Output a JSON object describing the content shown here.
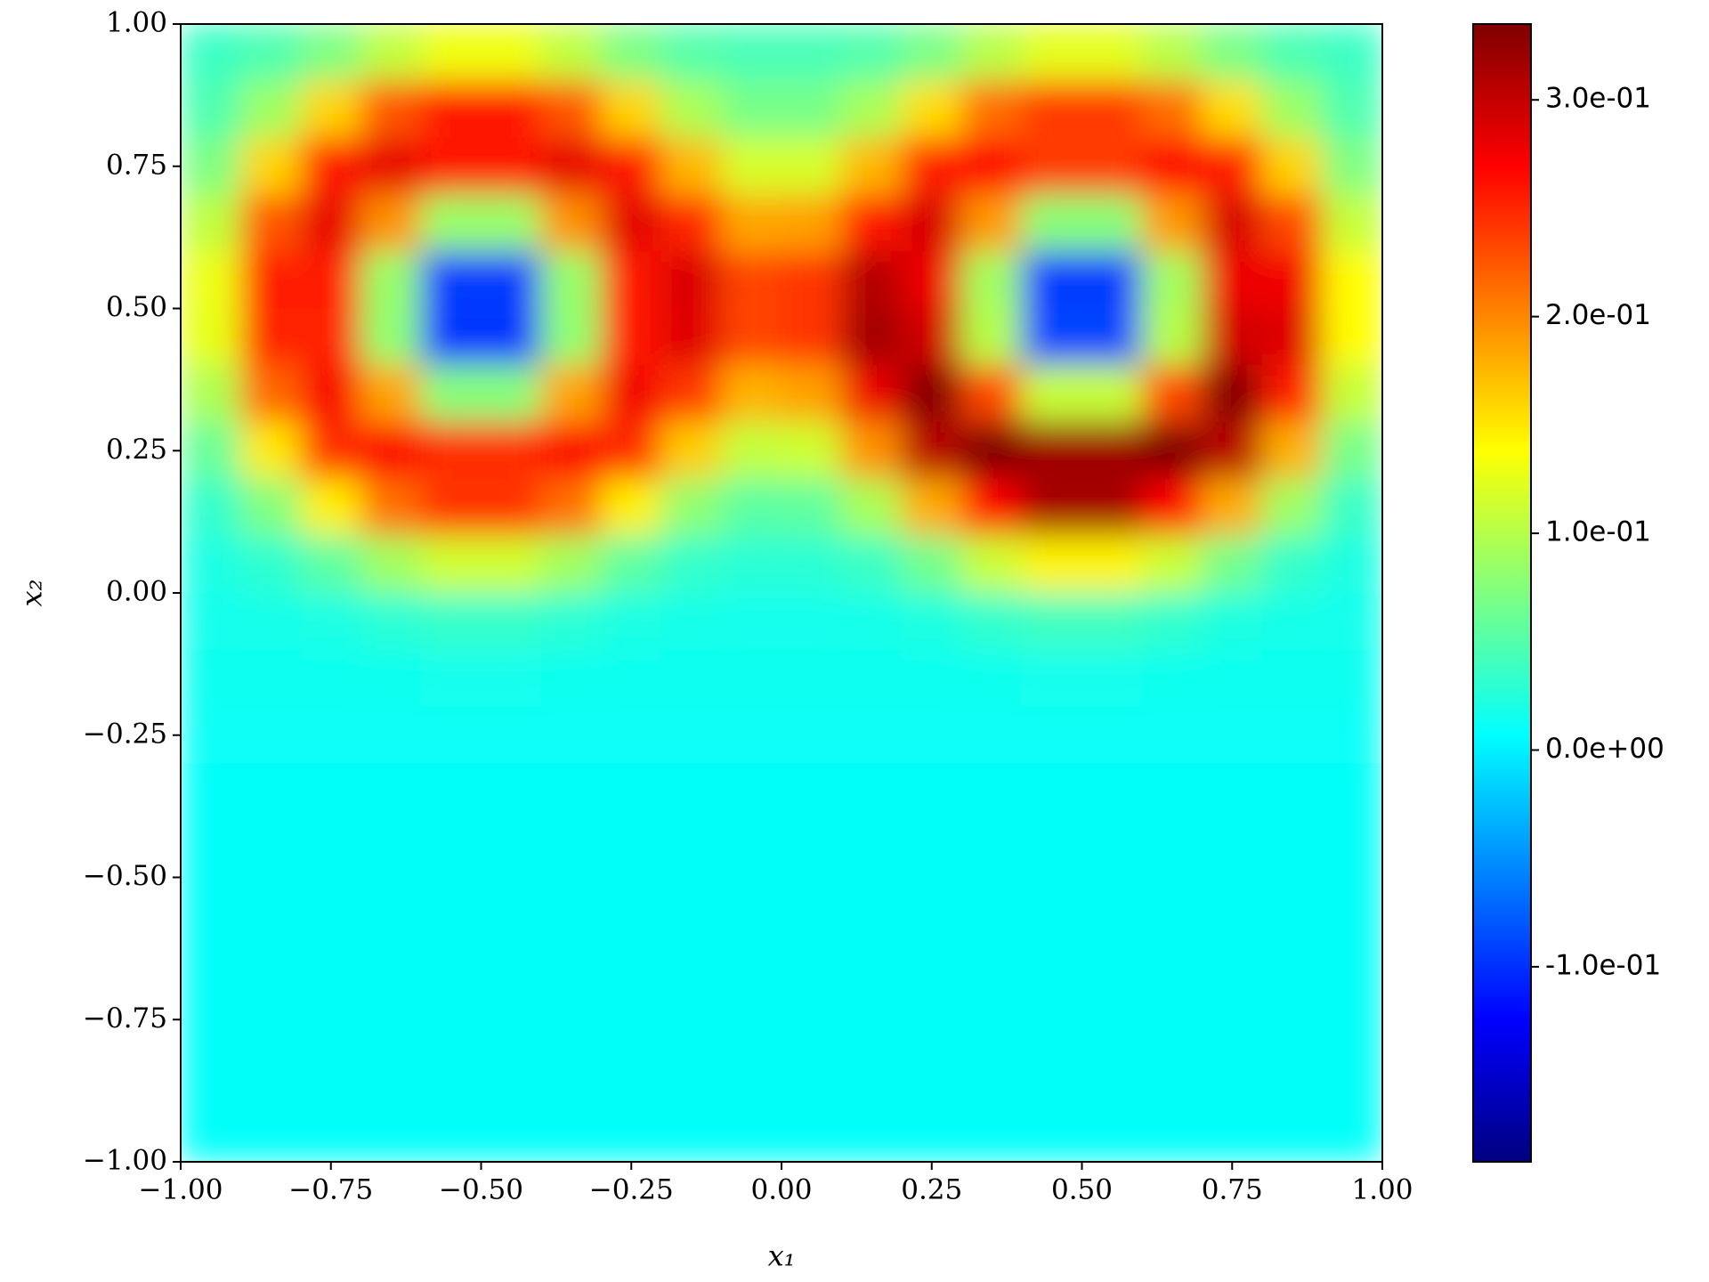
{
  "chart_data": {
    "type": "heatmap",
    "xlabel": "x₁",
    "ylabel": "x₂",
    "colormap": "jet",
    "clim": [
      -0.19,
      0.335
    ],
    "cticks": [
      {
        "value": -0.1,
        "label": "-1.0e-01"
      },
      {
        "value": 0,
        "label": "0.0e+00"
      },
      {
        "value": 0.1,
        "label": "1.0e-01"
      },
      {
        "value": 0.2,
        "label": "2.0e-01"
      },
      {
        "value": 0.3,
        "label": "3.0e-01"
      }
    ],
    "xlim": [
      -1,
      1
    ],
    "ylim": [
      -1,
      1
    ],
    "xticks": [
      {
        "value": -1,
        "label": "−1.00"
      },
      {
        "value": -0.75,
        "label": "−0.75"
      },
      {
        "value": -0.5,
        "label": "−0.50"
      },
      {
        "value": -0.25,
        "label": "−0.25"
      },
      {
        "value": 0,
        "label": "0.00"
      },
      {
        "value": 0.25,
        "label": "0.25"
      },
      {
        "value": 0.5,
        "label": "0.50"
      },
      {
        "value": 0.75,
        "label": "0.75"
      },
      {
        "value": 1,
        "label": "1.00"
      }
    ],
    "yticks": [
      {
        "value": -1,
        "label": "−1.00"
      },
      {
        "value": -0.75,
        "label": "−0.75"
      },
      {
        "value": -0.5,
        "label": "−0.50"
      },
      {
        "value": -0.25,
        "label": "−0.25"
      },
      {
        "value": 0,
        "label": "0.00"
      },
      {
        "value": 0.25,
        "label": "0.25"
      },
      {
        "value": 0.5,
        "label": "0.50"
      },
      {
        "value": 0.75,
        "label": "0.75"
      },
      {
        "value": 1,
        "label": "1.00"
      }
    ],
    "x": [
      -0.95,
      -0.85,
      -0.75,
      -0.65,
      -0.55,
      -0.45,
      -0.35,
      -0.25,
      -0.15,
      -0.05,
      0.05,
      0.15,
      0.25,
      0.35,
      0.45,
      0.55,
      0.65,
      0.75,
      0.85,
      0.95
    ],
    "y": [
      0.95,
      0.85,
      0.75,
      0.65,
      0.55,
      0.45,
      0.35,
      0.25,
      0.15,
      0.05,
      -0.05,
      -0.15,
      -0.25,
      -0.35,
      -0.45,
      -0.55,
      -0.65,
      -0.75,
      -0.85,
      -0.95
    ],
    "z": [
      [
        0.037,
        0.047,
        0.071,
        0.105,
        0.13,
        0.13,
        0.105,
        0.071,
        0.05,
        0.044,
        0.044,
        0.049,
        0.069,
        0.101,
        0.124,
        0.124,
        0.101,
        0.069,
        0.046,
        0.037
      ],
      [
        0.047,
        0.088,
        0.16,
        0.225,
        0.257,
        0.257,
        0.225,
        0.16,
        0.095,
        0.068,
        0.068,
        0.094,
        0.155,
        0.213,
        0.239,
        0.239,
        0.213,
        0.155,
        0.087,
        0.047
      ],
      [
        0.071,
        0.16,
        0.257,
        0.282,
        0.257,
        0.257,
        0.282,
        0.259,
        0.175,
        0.117,
        0.117,
        0.175,
        0.255,
        0.27,
        0.239,
        0.239,
        0.27,
        0.255,
        0.16,
        0.072
      ],
      [
        0.105,
        0.225,
        0.282,
        0.194,
        0.085,
        0.085,
        0.194,
        0.285,
        0.25,
        0.184,
        0.187,
        0.257,
        0.29,
        0.19,
        0.077,
        0.077,
        0.19,
        0.29,
        0.232,
        0.109
      ],
      [
        0.129,
        0.256,
        0.256,
        0.084,
        -0.094,
        -0.094,
        0.084,
        0.26,
        0.289,
        0.234,
        0.242,
        0.308,
        0.278,
        0.09,
        -0.094,
        -0.094,
        0.09,
        0.278,
        0.276,
        0.139
      ],
      [
        0.126,
        0.253,
        0.253,
        0.081,
        -0.097,
        -0.097,
        0.081,
        0.257,
        0.286,
        0.234,
        0.242,
        0.317,
        0.293,
        0.1,
        -0.089,
        -0.089,
        0.1,
        0.293,
        0.286,
        0.139
      ],
      [
        0.096,
        0.216,
        0.273,
        0.185,
        0.076,
        0.076,
        0.185,
        0.276,
        0.241,
        0.178,
        0.187,
        0.279,
        0.332,
        0.232,
        0.109,
        0.109,
        0.232,
        0.332,
        0.254,
        0.109
      ],
      [
        0.06,
        0.149,
        0.246,
        0.271,
        0.246,
        0.246,
        0.271,
        0.248,
        0.164,
        0.107,
        0.113,
        0.194,
        0.306,
        0.344,
        0.319,
        0.319,
        0.344,
        0.306,
        0.179,
        0.068
      ],
      [
        0.033,
        0.074,
        0.146,
        0.211,
        0.243,
        0.243,
        0.211,
        0.146,
        0.081,
        0.054,
        0.057,
        0.094,
        0.181,
        0.269,
        0.315,
        0.315,
        0.269,
        0.181,
        0.087,
        0.036
      ],
      [
        0.021,
        0.031,
        0.055,
        0.089,
        0.114,
        0.114,
        0.089,
        0.055,
        0.034,
        0.028,
        0.029,
        0.037,
        0.066,
        0.111,
        0.144,
        0.144,
        0.111,
        0.066,
        0.034,
        0.022
      ],
      [
        0.016,
        0.018,
        0.021,
        0.028,
        0.034,
        0.034,
        0.028,
        0.021,
        0.018,
        0.016,
        0.016,
        0.018,
        0.023,
        0.032,
        0.04,
        0.04,
        0.032,
        0.023,
        0.018,
        0.016
      ],
      [
        0.014,
        0.014,
        0.014,
        0.015,
        0.016,
        0.016,
        0.015,
        0.014,
        0.014,
        0.014,
        0.014,
        0.014,
        0.014,
        0.015,
        0.016,
        0.016,
        0.015,
        0.014,
        0.014,
        0.014
      ],
      [
        0.011,
        0.011,
        0.011,
        0.011,
        0.011,
        0.011,
        0.011,
        0.011,
        0.011,
        0.011,
        0.011,
        0.011,
        0.011,
        0.011,
        0.011,
        0.011,
        0.011,
        0.011,
        0.011,
        0.011
      ],
      [
        0.01,
        0.01,
        0.01,
        0.01,
        0.01,
        0.01,
        0.01,
        0.01,
        0.01,
        0.01,
        0.01,
        0.01,
        0.01,
        0.01,
        0.01,
        0.01,
        0.01,
        0.01,
        0.01,
        0.01
      ],
      [
        0.01,
        0.01,
        0.01,
        0.01,
        0.01,
        0.01,
        0.01,
        0.01,
        0.01,
        0.01,
        0.01,
        0.01,
        0.01,
        0.01,
        0.01,
        0.01,
        0.01,
        0.01,
        0.01,
        0.01
      ],
      [
        0.01,
        0.01,
        0.01,
        0.01,
        0.01,
        0.01,
        0.01,
        0.01,
        0.01,
        0.01,
        0.01,
        0.01,
        0.01,
        0.01,
        0.01,
        0.01,
        0.01,
        0.01,
        0.01,
        0.01
      ],
      [
        0.01,
        0.01,
        0.01,
        0.01,
        0.01,
        0.01,
        0.01,
        0.01,
        0.01,
        0.01,
        0.01,
        0.01,
        0.01,
        0.01,
        0.01,
        0.01,
        0.01,
        0.01,
        0.01,
        0.01
      ],
      [
        0.01,
        0.01,
        0.01,
        0.01,
        0.01,
        0.01,
        0.01,
        0.01,
        0.01,
        0.01,
        0.01,
        0.01,
        0.01,
        0.01,
        0.01,
        0.01,
        0.01,
        0.01,
        0.01,
        0.01
      ],
      [
        0.01,
        0.01,
        0.01,
        0.01,
        0.01,
        0.01,
        0.01,
        0.01,
        0.01,
        0.01,
        0.01,
        0.01,
        0.01,
        0.01,
        0.01,
        0.01,
        0.01,
        0.01,
        0.01,
        0.01
      ],
      [
        0.01,
        0.01,
        0.01,
        0.01,
        0.01,
        0.01,
        0.01,
        0.01,
        0.01,
        0.01,
        0.01,
        0.01,
        0.01,
        0.01,
        0.01,
        0.01,
        0.01,
        0.01,
        0.01,
        0.01
      ]
    ]
  }
}
